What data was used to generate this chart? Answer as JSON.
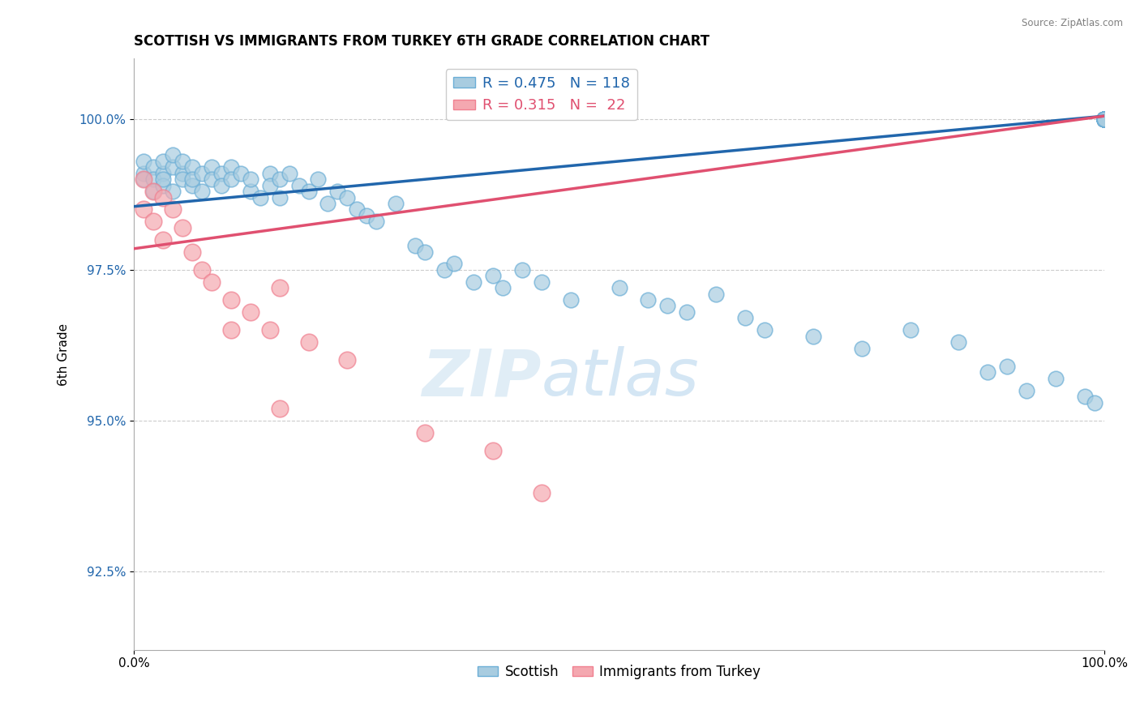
{
  "title": "SCOTTISH VS IMMIGRANTS FROM TURKEY 6TH GRADE CORRELATION CHART",
  "source": "Source: ZipAtlas.com",
  "xlabel": "",
  "ylabel": "6th Grade",
  "xlim": [
    0.0,
    100.0
  ],
  "ylim": [
    91.2,
    101.0
  ],
  "yticks": [
    92.5,
    95.0,
    97.5,
    100.0
  ],
  "ytick_labels": [
    "92.5%",
    "95.0%",
    "97.5%",
    "100.0%"
  ],
  "xticks": [
    0.0,
    100.0
  ],
  "xtick_labels": [
    "0.0%",
    "100.0%"
  ],
  "legend_labels": [
    "Scottish",
    "Immigrants from Turkey"
  ],
  "blue_R": 0.475,
  "blue_N": 118,
  "pink_R": 0.315,
  "pink_N": 22,
  "blue_color": "#a8cce0",
  "pink_color": "#f4a8b0",
  "blue_edge_color": "#6baed6",
  "pink_edge_color": "#f08090",
  "blue_line_color": "#2166ac",
  "pink_line_color": "#e05070",
  "watermark_zip": "ZIP",
  "watermark_atlas": "atlas",
  "blue_trend_x0": 0,
  "blue_trend_x1": 100,
  "blue_trend_y0": 98.55,
  "blue_trend_y1": 100.05,
  "pink_trend_x0": 0,
  "pink_trend_x1": 100,
  "pink_trend_y0": 97.85,
  "pink_trend_y1": 100.05,
  "blue_scatter_x": [
    1,
    1,
    1,
    2,
    2,
    2,
    3,
    3,
    3,
    3,
    4,
    4,
    4,
    5,
    5,
    5,
    6,
    6,
    6,
    7,
    7,
    8,
    8,
    9,
    9,
    10,
    10,
    11,
    12,
    12,
    13,
    14,
    14,
    15,
    15,
    16,
    17,
    18,
    19,
    20,
    21,
    22,
    23,
    24,
    25,
    27,
    29,
    30,
    32,
    33,
    35,
    37,
    38,
    40,
    42,
    45,
    50,
    53,
    55,
    57,
    60,
    63,
    65,
    70,
    75,
    80,
    85,
    88,
    90,
    92,
    95,
    98,
    99,
    100,
    100,
    100,
    100,
    100,
    100,
    100,
    100,
    100,
    100,
    100,
    100,
    100,
    100,
    100,
    100,
    100,
    100,
    100,
    100,
    100,
    100,
    100,
    100,
    100,
    100,
    100,
    100,
    100,
    100,
    100,
    100,
    100,
    100,
    100,
    100,
    100,
    100,
    100,
    100,
    100,
    100,
    100,
    100,
    100
  ],
  "blue_scatter_y": [
    99.1,
    99.3,
    99.0,
    99.2,
    99.0,
    98.8,
    99.1,
    98.9,
    99.3,
    99.0,
    99.2,
    98.8,
    99.4,
    99.1,
    99.0,
    99.3,
    99.2,
    98.9,
    99.0,
    99.1,
    98.8,
    99.2,
    99.0,
    99.1,
    98.9,
    99.2,
    99.0,
    99.1,
    98.8,
    99.0,
    98.7,
    99.1,
    98.9,
    99.0,
    98.7,
    99.1,
    98.9,
    98.8,
    99.0,
    98.6,
    98.8,
    98.7,
    98.5,
    98.4,
    98.3,
    98.6,
    97.9,
    97.8,
    97.5,
    97.6,
    97.3,
    97.4,
    97.2,
    97.5,
    97.3,
    97.0,
    97.2,
    97.0,
    96.9,
    96.8,
    97.1,
    96.7,
    96.5,
    96.4,
    96.2,
    96.5,
    96.3,
    95.8,
    95.9,
    95.5,
    95.7,
    95.4,
    95.3,
    100.0,
    100.0,
    100.0,
    100.0,
    100.0,
    100.0,
    100.0,
    100.0,
    100.0,
    100.0,
    100.0,
    100.0,
    100.0,
    100.0,
    100.0,
    100.0,
    100.0,
    100.0,
    100.0,
    100.0,
    100.0,
    100.0,
    100.0,
    100.0,
    100.0,
    100.0,
    100.0,
    100.0,
    100.0,
    100.0,
    100.0,
    100.0,
    100.0,
    100.0,
    100.0,
    100.0,
    100.0,
    100.0,
    100.0,
    100.0,
    100.0,
    100.0,
    100.0,
    100.0,
    100.0
  ],
  "pink_scatter_x": [
    1,
    1,
    2,
    2,
    3,
    3,
    4,
    5,
    6,
    7,
    8,
    10,
    12,
    14,
    15,
    18,
    22,
    30,
    37,
    42,
    10,
    15
  ],
  "pink_scatter_y": [
    99.0,
    98.5,
    98.8,
    98.3,
    98.7,
    98.0,
    98.5,
    98.2,
    97.8,
    97.5,
    97.3,
    97.0,
    96.8,
    96.5,
    97.2,
    96.3,
    96.0,
    94.8,
    94.5,
    93.8,
    96.5,
    95.2
  ]
}
